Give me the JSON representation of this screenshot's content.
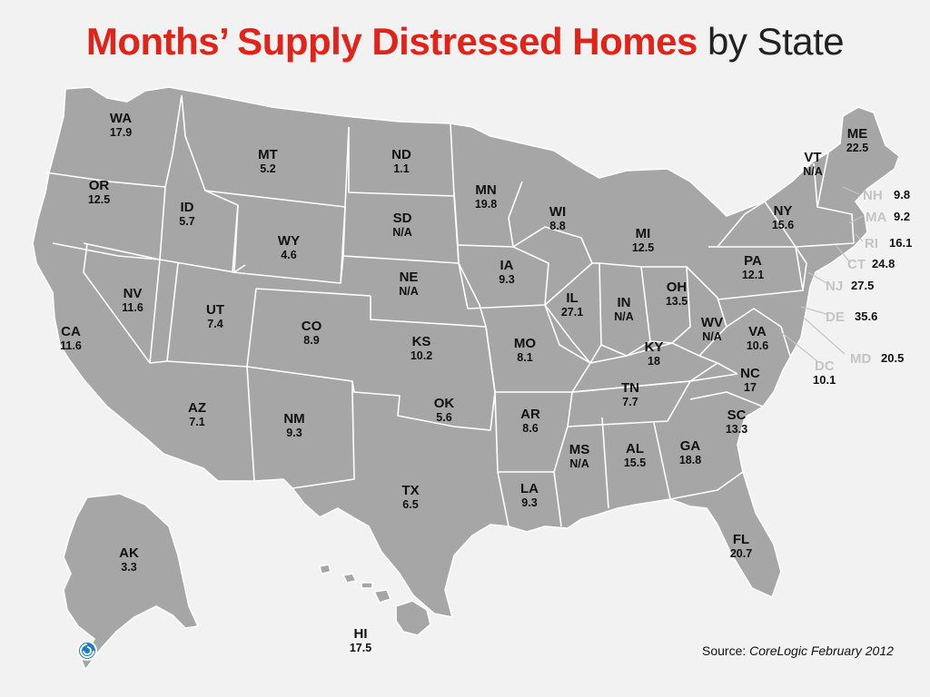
{
  "title": {
    "highlight": "Months’ Supply Distressed Homes",
    "rest": " by State"
  },
  "source": {
    "label": "Source: ",
    "text": "CoreLogic February 2012"
  },
  "logo": {
    "icon": "corelogic-swirl-icon",
    "color": "#1d7fc1"
  },
  "colors": {
    "title_red": "#e2231a",
    "land": "#a6a6a6",
    "border": "#ffffff",
    "background": "#f2f2f2"
  },
  "states": [
    {
      "abbr": "WA",
      "value": "17.9"
    },
    {
      "abbr": "OR",
      "value": "12.5"
    },
    {
      "abbr": "CA",
      "value": "11.6"
    },
    {
      "abbr": "ID",
      "value": "5.7"
    },
    {
      "abbr": "NV",
      "value": "11.6"
    },
    {
      "abbr": "MT",
      "value": "5.2"
    },
    {
      "abbr": "WY",
      "value": "4.6"
    },
    {
      "abbr": "UT",
      "value": "7.4"
    },
    {
      "abbr": "AZ",
      "value": "7.1"
    },
    {
      "abbr": "CO",
      "value": "8.9"
    },
    {
      "abbr": "NM",
      "value": "9.3"
    },
    {
      "abbr": "ND",
      "value": "1.1"
    },
    {
      "abbr": "SD",
      "value": "N/A"
    },
    {
      "abbr": "NE",
      "value": "N/A"
    },
    {
      "abbr": "KS",
      "value": "10.2"
    },
    {
      "abbr": "OK",
      "value": "5.6"
    },
    {
      "abbr": "TX",
      "value": "6.5"
    },
    {
      "abbr": "MN",
      "value": "19.8"
    },
    {
      "abbr": "IA",
      "value": "9.3"
    },
    {
      "abbr": "MO",
      "value": "8.1"
    },
    {
      "abbr": "AR",
      "value": "8.6"
    },
    {
      "abbr": "LA",
      "value": "9.3"
    },
    {
      "abbr": "WI",
      "value": "8.8"
    },
    {
      "abbr": "IL",
      "value": "27.1"
    },
    {
      "abbr": "MI",
      "value": "12.5"
    },
    {
      "abbr": "IN",
      "value": "N/A"
    },
    {
      "abbr": "OH",
      "value": "13.5"
    },
    {
      "abbr": "KY",
      "value": "18"
    },
    {
      "abbr": "TN",
      "value": "7.7"
    },
    {
      "abbr": "MS",
      "value": "N/A"
    },
    {
      "abbr": "AL",
      "value": "15.5"
    },
    {
      "abbr": "GA",
      "value": "18.8"
    },
    {
      "abbr": "FL",
      "value": "20.7"
    },
    {
      "abbr": "SC",
      "value": "13.3"
    },
    {
      "abbr": "NC",
      "value": "17"
    },
    {
      "abbr": "VA",
      "value": "10.6"
    },
    {
      "abbr": "WV",
      "value": "N/A"
    },
    {
      "abbr": "PA",
      "value": "12.1"
    },
    {
      "abbr": "NY",
      "value": "15.6"
    },
    {
      "abbr": "VT",
      "value": "N/A"
    },
    {
      "abbr": "ME",
      "value": "22.5"
    },
    {
      "abbr": "AK",
      "value": "3.3"
    },
    {
      "abbr": "HI",
      "value": "17.5"
    }
  ],
  "east_labels": [
    {
      "abbr": "NH",
      "value": "9.8"
    },
    {
      "abbr": "MA",
      "value": "9.2"
    },
    {
      "abbr": "RI",
      "value": "16.1"
    },
    {
      "abbr": "CT",
      "value": "24.8"
    },
    {
      "abbr": "NJ",
      "value": "27.5"
    },
    {
      "abbr": "DE",
      "value": "35.6"
    },
    {
      "abbr": "MD",
      "value": "20.5"
    },
    {
      "abbr": "DC",
      "value": "10.1"
    }
  ]
}
